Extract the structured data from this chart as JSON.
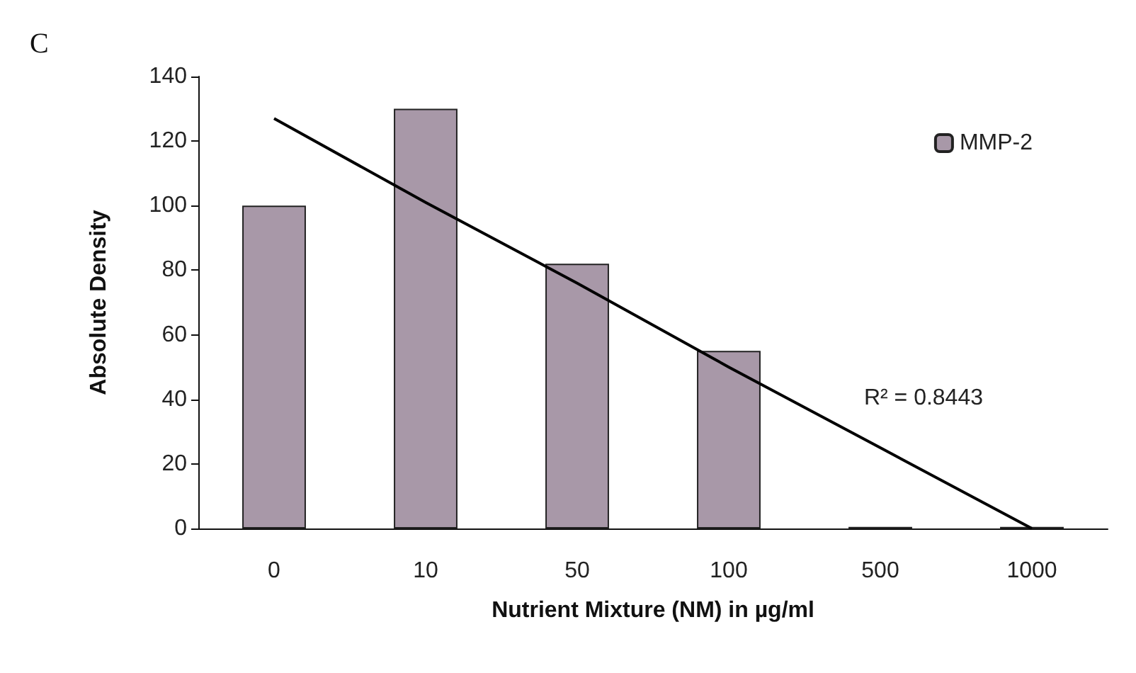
{
  "chart_data": {
    "type": "bar",
    "title": "C",
    "xlabel": "Nutrient Mixture (NM) in µg/ml",
    "ylabel": "Absolute Density",
    "categories": [
      "0",
      "10",
      "50",
      "100",
      "500",
      "1000"
    ],
    "series": [
      {
        "name": "MMP-2",
        "color": "#a898a8",
        "values": [
          100,
          130,
          82,
          55,
          0.5,
          0.5
        ]
      },
      {
        "type": "line",
        "color": "#000000",
        "values": [
          127,
          101,
          76,
          50,
          25,
          0
        ]
      }
    ],
    "ylim": [
      0,
      140
    ],
    "yticks": [
      0,
      20,
      40,
      60,
      80,
      100,
      120,
      140
    ],
    "grid": false,
    "legend": "top right",
    "marker": "none",
    "annotations": [
      "R² = 0.8443"
    ]
  }
}
